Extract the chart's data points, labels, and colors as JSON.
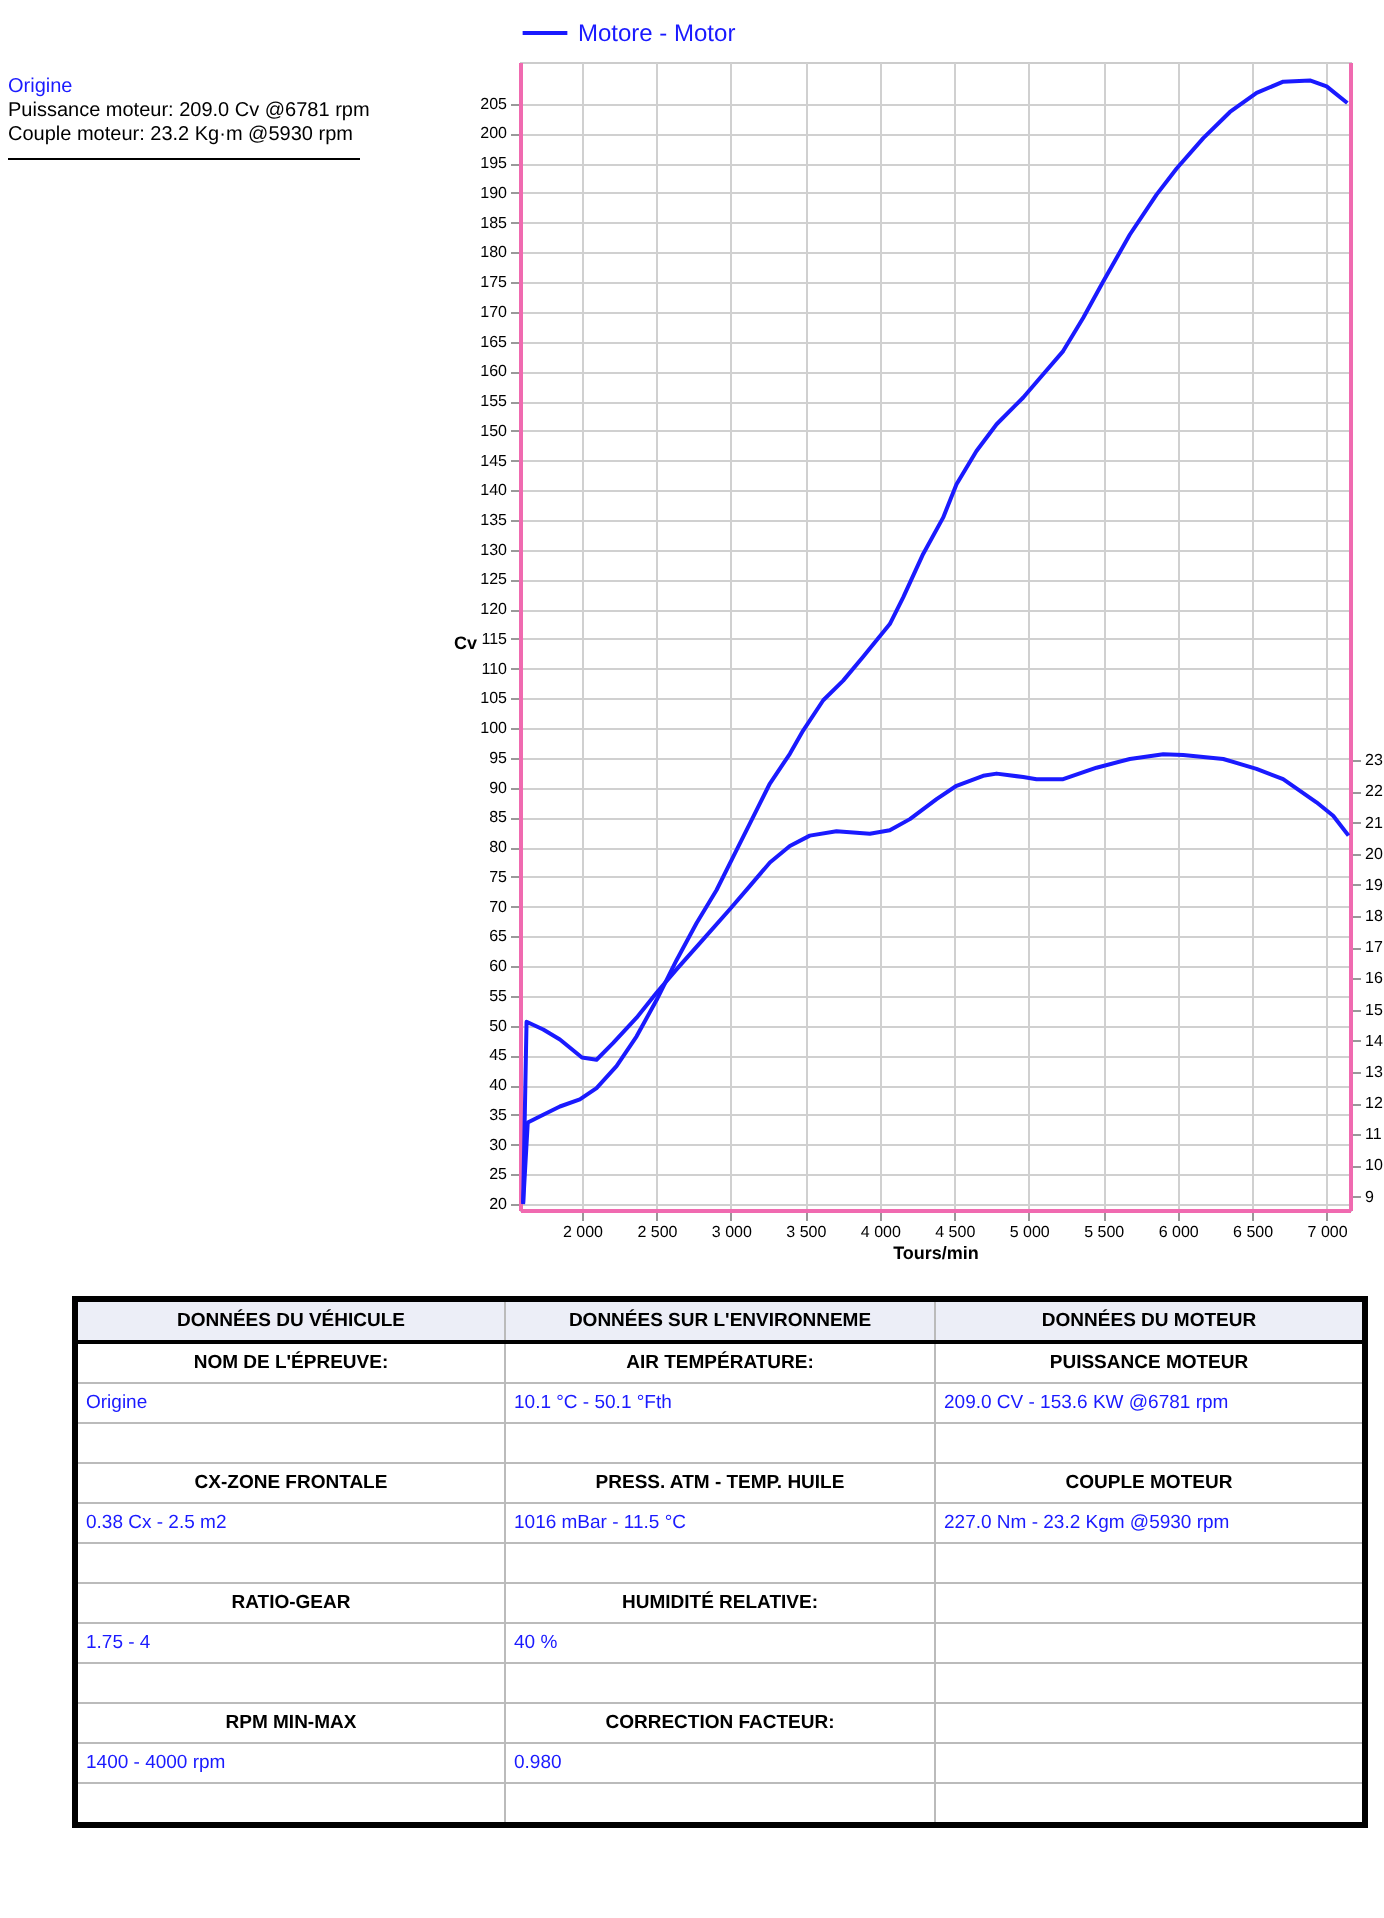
{
  "chart_data": {
    "type": "line",
    "legend": "top",
    "grid": true,
    "xlabel": "Tours/min",
    "ylabel": "Cv",
    "xlim": [
      1584,
      7157
    ],
    "xticks": [
      {
        "value": 2000,
        "label": "2 000"
      },
      {
        "value": 2500,
        "label": "2 500"
      },
      {
        "value": 3000,
        "label": "3 000"
      },
      {
        "value": 3500,
        "label": "3 500"
      },
      {
        "value": 4000,
        "label": "4 000"
      },
      {
        "value": 4500,
        "label": "4 500"
      },
      {
        "value": 5000,
        "label": "5 000"
      },
      {
        "value": 5500,
        "label": "5 500"
      },
      {
        "value": 6000,
        "label": "6 000"
      },
      {
        "value": 6500,
        "label": "6 500"
      },
      {
        "value": 7000,
        "label": "7 000"
      }
    ],
    "ylim": [
      19,
      212
    ],
    "yticks": [
      20,
      25,
      30,
      35,
      40,
      45,
      50,
      55,
      60,
      65,
      70,
      75,
      80,
      85,
      90,
      95,
      100,
      105,
      110,
      115,
      120,
      125,
      130,
      135,
      140,
      145,
      150,
      155,
      160,
      165,
      170,
      175,
      180,
      185,
      190,
      195,
      200,
      205
    ],
    "y2lim": [
      8.57,
      45.4
    ],
    "y2ticks": [
      9,
      10,
      11,
      12,
      13,
      14,
      15,
      16,
      17,
      18,
      19,
      20,
      21,
      22,
      23
    ],
    "series": [
      {
        "name": "Motore - Motor",
        "color": "#1a1aff",
        "x": [
          1605,
          1636,
          1740,
          1852,
          1986,
          2098,
          2232,
          2367,
          2501,
          2635,
          2769,
          2904,
          3016,
          3128,
          3262,
          3396,
          3485,
          3620,
          3754,
          3888,
          4067,
          4157,
          4291,
          4425,
          4515,
          4649,
          4784,
          4963,
          5097,
          5231,
          5366,
          5500,
          5679,
          5858,
          5993,
          6172,
          6351,
          6530,
          6709,
          6888,
          7000,
          7139
        ],
        "values": [
          20,
          33.7,
          35.0,
          36.4,
          37.6,
          39.5,
          43.2,
          48.2,
          54.3,
          61.0,
          67.2,
          72.8,
          78.4,
          84.0,
          90.7,
          95.7,
          99.6,
          104.7,
          108.0,
          112.0,
          117.5,
          122.0,
          129.3,
          135.4,
          141.0,
          146.6,
          151.1,
          155.6,
          159.5,
          163.4,
          169.0,
          175.1,
          183.0,
          189.7,
          194.1,
          199.2,
          203.6,
          206.8,
          208.7,
          208.9,
          207.9,
          205.1
        ]
      },
      {
        "color": "#1a1aff",
        "axis": "y2",
        "x": [
          1605,
          1628,
          1740,
          1852,
          2000,
          2098,
          2210,
          2367,
          2501,
          2635,
          2814,
          2993,
          3128,
          3262,
          3396,
          3530,
          3709,
          3933,
          4067,
          4202,
          4381,
          4515,
          4694,
          4784,
          4963,
          5052,
          5231,
          5455,
          5679,
          5903,
          6037,
          6306,
          6529,
          6708,
          6932,
          7044,
          7147
        ],
        "values": [
          8.8,
          14.61,
          14.36,
          14.04,
          13.46,
          13.39,
          13.93,
          14.74,
          15.54,
          16.29,
          17.25,
          18.22,
          18.97,
          19.72,
          20.25,
          20.58,
          20.72,
          20.64,
          20.75,
          21.11,
          21.75,
          22.18,
          22.5,
          22.57,
          22.46,
          22.39,
          22.39,
          22.76,
          23.04,
          23.19,
          23.17,
          23.04,
          22.72,
          22.39,
          21.65,
          21.22,
          20.58
        ]
      }
    ],
    "annotations": [
      "Origine",
      "Puissance moteur: 209.0 Cv @6781 rpm",
      "Couple moteur: 23.2 Kg·m @5930 rpm",
      "DONNÉES DU VÉHICULE",
      "DONNÉES SUR L'ENVIRONNEME",
      "DONNÉES DU MOTEUR",
      "NOM DE L'ÉPREUVE:",
      "AIR TEMPÉRATURE:",
      "PUISSANCE MOTEUR",
      "Origine",
      "10.1 °C - 50.1 °Fth",
      "209.0 CV - 153.6 KW  @6781 rpm",
      "CX-ZONE FRONTALE",
      "PRESS. ATM - TEMP. HUILE",
      "COUPLE MOTEUR",
      "0.38 Cx - 2.5 m2",
      "1016 mBar - 11.5 °C",
      "227.0 Nm - 23.2 Kgm  @5930 rpm",
      "RATIO-GEAR",
      "HUMIDITÉ RELATIVE:",
      "1.75 - 4",
      "40 %",
      "RPM MIN-MAX",
      "CORRECTION FACTEUR:",
      "1400 - 4000 rpm",
      "0.980"
    ]
  }
}
